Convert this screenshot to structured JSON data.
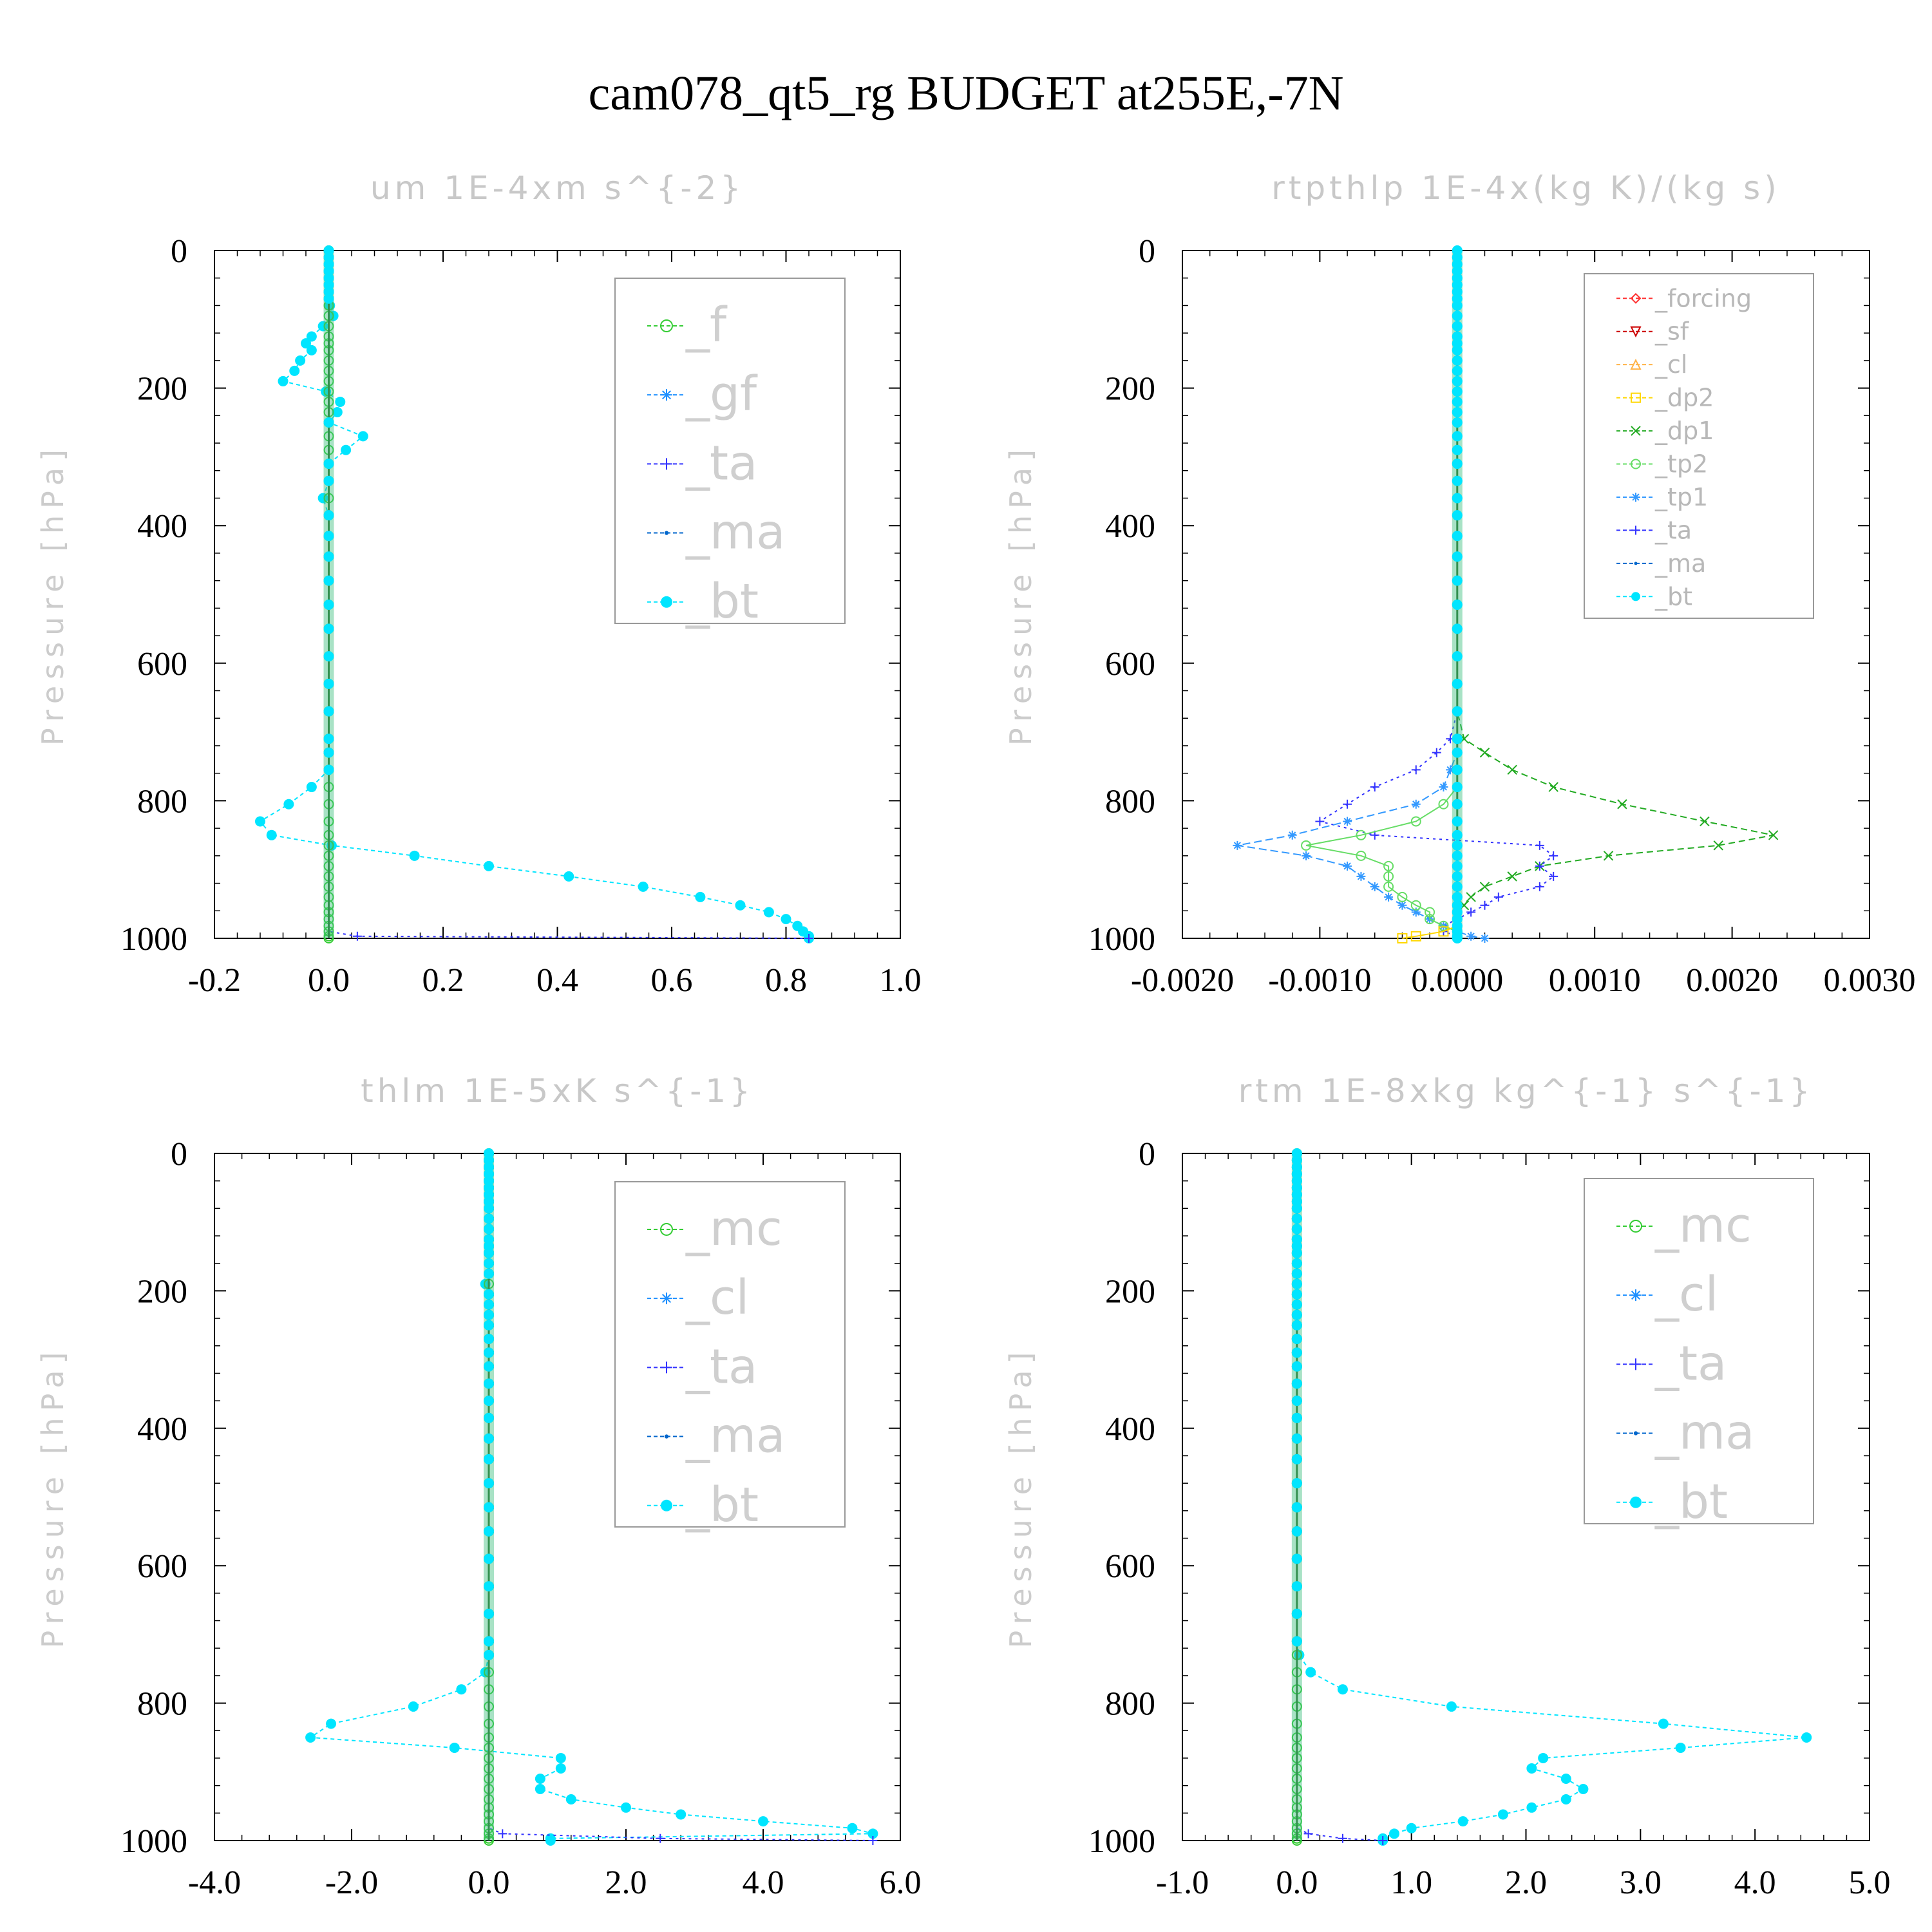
{
  "figure_title": "cam078_qt5_rg  BUDGET at255E,-7N",
  "colors": {
    "f": "#33cc33",
    "gf": "#1e90ff",
    "ta": "#3333ff",
    "ma": "#0066cc",
    "bt": "#00e5ff",
    "forcing": "#ff3333",
    "sf": "#cc0000",
    "cl": "#ffb347",
    "dp2": "#ffd700",
    "dp1": "#22aa22",
    "tp2": "#66dd66",
    "tp1": "#3399ff",
    "mc": "#33cc33",
    "cl_blue": "#1e90ff"
  },
  "chart_data": [
    {
      "type": "line",
      "title": "um  1E-4xm s^{-2}",
      "ylabel": "Pressure [hPa]",
      "xlim": [
        -0.2,
        1.0
      ],
      "ylim": [
        1000,
        0
      ],
      "xticks": [
        "-0.2",
        "0.0",
        "0.2",
        "0.4",
        "0.6",
        "0.8",
        "1.0"
      ],
      "yticks": [
        "0",
        "200",
        "400",
        "600",
        "800",
        "1000"
      ],
      "legend": [
        "_f",
        "_gf",
        "_ta",
        "_ma",
        "_bt"
      ],
      "p": [
        0,
        10,
        20,
        30,
        40,
        50,
        60,
        70,
        80,
        95,
        110,
        125,
        135,
        145,
        160,
        175,
        190,
        205,
        220,
        235,
        250,
        270,
        290,
        310,
        335,
        360,
        385,
        415,
        445,
        480,
        515,
        550,
        590,
        630,
        670,
        710,
        730,
        755,
        780,
        805,
        830,
        850,
        865,
        880,
        895,
        910,
        925,
        940,
        952,
        962,
        972,
        982,
        990,
        997,
        1000
      ],
      "series": [
        {
          "name": "_bt",
          "values": [
            0,
            0,
            0,
            0,
            0,
            0,
            0,
            0,
            0.002,
            0.008,
            -0.01,
            -0.03,
            -0.04,
            -0.03,
            -0.05,
            -0.06,
            -0.08,
            -0.005,
            0.02,
            0.015,
            0,
            0.06,
            0.03,
            0,
            0,
            -0.01,
            0,
            0,
            0,
            0,
            0,
            0,
            0,
            0,
            0,
            0,
            0,
            0,
            -0.03,
            -0.07,
            -0.12,
            -0.1,
            0.005,
            0.15,
            0.28,
            0.42,
            0.55,
            0.65,
            0.72,
            0.77,
            0.8,
            0.82,
            0.83,
            0.84,
            0.84
          ]
        },
        {
          "name": "_ta",
          "values": [
            0,
            0,
            0,
            0,
            0,
            0,
            0,
            0,
            0,
            0,
            0,
            0,
            0,
            0,
            0,
            0,
            0,
            0,
            0,
            0,
            0,
            0,
            0,
            0,
            0,
            0,
            0,
            0,
            0,
            0,
            0,
            0,
            0,
            0,
            0,
            0,
            0,
            0,
            0,
            0,
            0,
            0,
            0,
            0,
            0,
            0,
            0,
            0,
            0,
            0,
            0,
            0,
            0,
            0.05,
            0.84
          ]
        },
        {
          "name": "_f",
          "values": [
            0,
            0,
            0,
            0,
            0,
            0,
            0,
            0,
            0,
            0,
            0,
            0,
            0,
            0,
            0,
            0,
            0,
            0,
            0,
            0,
            0,
            0,
            0,
            0,
            0,
            0,
            0,
            0,
            0,
            0,
            0,
            0,
            0,
            0,
            0,
            0,
            0,
            0,
            0,
            0,
            0,
            0,
            0,
            0,
            0,
            0,
            0,
            0,
            0,
            0,
            0,
            0,
            0,
            0,
            0
          ]
        }
      ]
    },
    {
      "type": "line",
      "title": "rtpthlp  1E-4x(kg K)/(kg s)",
      "ylabel": "Pressure [hPa]",
      "xlim": [
        -0.002,
        0.003
      ],
      "ylim": [
        1000,
        0
      ],
      "xticks": [
        "-0.0020",
        "-0.0010",
        "0.0000",
        "0.0010",
        "0.0020",
        "0.0030"
      ],
      "yticks": [
        "0",
        "200",
        "400",
        "600",
        "800",
        "1000"
      ],
      "legend": [
        "_forcing",
        "_sf",
        "_cl",
        "_dp2",
        "_dp1",
        "_tp2",
        "_tp1",
        "_ta",
        "_ma",
        "_bt"
      ],
      "p": [
        0,
        10,
        20,
        30,
        40,
        50,
        60,
        70,
        80,
        95,
        110,
        125,
        135,
        145,
        160,
        175,
        190,
        205,
        220,
        235,
        250,
        270,
        290,
        310,
        335,
        360,
        385,
        415,
        445,
        480,
        515,
        550,
        590,
        630,
        670,
        710,
        730,
        755,
        780,
        805,
        830,
        850,
        865,
        880,
        895,
        910,
        925,
        940,
        952,
        962,
        972,
        982,
        990,
        997,
        1000
      ],
      "series": [
        {
          "name": "_dp1",
          "values": [
            0,
            0,
            0,
            0,
            0,
            0,
            0,
            0,
            0,
            0,
            0,
            0,
            0,
            0,
            0,
            0,
            0,
            0,
            0,
            0,
            0,
            0,
            0,
            0,
            0,
            0,
            0,
            0,
            0,
            0,
            0,
            0,
            0,
            0,
            0,
            5e-05,
            0.0002,
            0.0004,
            0.0007,
            0.0012,
            0.0018,
            0.0023,
            0.0019,
            0.0011,
            0.0006,
            0.0004,
            0.0002,
            0.0001,
            5e-05,
            0,
            0,
            0,
            0,
            0,
            0
          ]
        },
        {
          "name": "_ta",
          "values": [
            0,
            0,
            0,
            0,
            0,
            0,
            0,
            0,
            0,
            0,
            0,
            0,
            0,
            0,
            0,
            0,
            0,
            0,
            0,
            0,
            0,
            0,
            0,
            0,
            0,
            0,
            0,
            0,
            0,
            0,
            0,
            0,
            0,
            0,
            0,
            -5e-05,
            -0.00015,
            -0.0003,
            -0.0006,
            -0.0008,
            -0.001,
            -0.0006,
            0.0006,
            0.0007,
            0.0006,
            0.0007,
            0.0006,
            0.0003,
            0.0002,
            0.0001,
            0,
            -0.0001,
            -0.0001,
            0,
            0
          ]
        },
        {
          "name": "_tp1",
          "values": [
            0,
            0,
            0,
            0,
            0,
            0,
            0,
            0,
            0,
            0,
            0,
            0,
            0,
            0,
            0,
            0,
            0,
            0,
            0,
            0,
            0,
            0,
            0,
            0,
            0,
            0,
            0,
            0,
            0,
            0,
            0,
            0,
            0,
            0,
            0,
            0,
            0,
            -5e-05,
            -0.0001,
            -0.0003,
            -0.0008,
            -0.0012,
            -0.0016,
            -0.0011,
            -0.0008,
            -0.0007,
            -0.0006,
            -0.0005,
            -0.0004,
            -0.0003,
            -0.0002,
            -0.0001,
            0,
            0.0001,
            0.0002
          ]
        },
        {
          "name": "_tp2",
          "values": [
            0,
            0,
            0,
            0,
            0,
            0,
            0,
            0,
            0,
            0,
            0,
            0,
            0,
            0,
            0,
            0,
            0,
            0,
            0,
            0,
            0,
            0,
            0,
            0,
            0,
            0,
            0,
            0,
            0,
            0,
            0,
            0,
            0,
            0,
            0,
            0,
            0,
            0,
            0,
            -0.0001,
            -0.0003,
            -0.0007,
            -0.0011,
            -0.0007,
            -0.0005,
            -0.0005,
            -0.0005,
            -0.0004,
            -0.0003,
            -0.0002,
            -0.0002,
            -0.0001,
            0,
            0,
            0
          ]
        },
        {
          "name": "_dp2",
          "values": [
            0,
            0,
            0,
            0,
            0,
            0,
            0,
            0,
            0,
            0,
            0,
            0,
            0,
            0,
            0,
            0,
            0,
            0,
            0,
            0,
            0,
            0,
            0,
            0,
            0,
            0,
            0,
            0,
            0,
            0,
            0,
            0,
            0,
            0,
            0,
            0,
            0,
            0,
            0,
            0,
            0,
            0,
            0,
            0,
            0,
            0,
            0,
            0,
            0,
            0,
            0,
            0,
            -0.0001,
            -0.0003,
            -0.0004
          ]
        },
        {
          "name": "_bt",
          "values": [
            0,
            0,
            0,
            0,
            0,
            0,
            0,
            0,
            0,
            0,
            0,
            0,
            0,
            0,
            0,
            0,
            0,
            0,
            0,
            0,
            0,
            0,
            0,
            0,
            0,
            0,
            0,
            0,
            0,
            0,
            0,
            0,
            0,
            0,
            0,
            0,
            0,
            0,
            0,
            0,
            0,
            0,
            0,
            0,
            0,
            0,
            0,
            0,
            0,
            0,
            0,
            0,
            0,
            0,
            0
          ]
        }
      ]
    },
    {
      "type": "line",
      "title": "thlm  1E-5xK s^{-1}",
      "ylabel": "Pressure [hPa]",
      "xlim": [
        -4.0,
        6.0
      ],
      "ylim": [
        1000,
        0
      ],
      "xticks": [
        "-4.0",
        "-2.0",
        "0.0",
        "2.0",
        "4.0",
        "6.0"
      ],
      "yticks": [
        "0",
        "200",
        "400",
        "600",
        "800",
        "1000"
      ],
      "legend": [
        "_mc",
        "_cl",
        "_ta",
        "_ma",
        "_bt"
      ],
      "p": [
        0,
        10,
        20,
        30,
        40,
        50,
        60,
        70,
        80,
        95,
        110,
        125,
        135,
        145,
        160,
        175,
        190,
        205,
        220,
        235,
        250,
        270,
        290,
        310,
        335,
        360,
        385,
        415,
        445,
        480,
        515,
        550,
        590,
        630,
        670,
        710,
        730,
        755,
        780,
        805,
        830,
        850,
        865,
        880,
        895,
        910,
        925,
        940,
        952,
        962,
        972,
        982,
        990,
        997,
        1000
      ],
      "series": [
        {
          "name": "_bt",
          "values": [
            0,
            0,
            0,
            0,
            0,
            0,
            0,
            0,
            0,
            0,
            0,
            0,
            0,
            0,
            0,
            0,
            -0.05,
            0,
            0,
            0,
            0,
            0,
            0,
            0,
            0,
            0,
            0,
            0,
            0,
            0,
            0,
            0,
            0,
            0,
            0,
            0,
            0,
            -0.05,
            -0.4,
            -1.1,
            -2.3,
            -2.6,
            -0.5,
            1.05,
            1.05,
            0.75,
            0.75,
            1.2,
            2.0,
            2.8,
            4.0,
            5.3,
            5.6,
            0.9,
            0.9
          ]
        },
        {
          "name": "_ta",
          "values": [
            0,
            0,
            0,
            0,
            0,
            0,
            0,
            0,
            0,
            0,
            0,
            0,
            0,
            0,
            0,
            0,
            0,
            0,
            0,
            0,
            0,
            0,
            0,
            0,
            0,
            0,
            0,
            0,
            0,
            0,
            0,
            0,
            0,
            0,
            0,
            0,
            0,
            0,
            0,
            0,
            0,
            0,
            0,
            0,
            0,
            0,
            0,
            0,
            0,
            0,
            0,
            0,
            0.2,
            2.5,
            5.6
          ]
        },
        {
          "name": "_mc",
          "values": [
            0,
            0,
            0,
            0,
            0,
            0,
            0,
            0,
            0,
            0,
            0,
            0,
            0,
            0,
            0,
            0,
            0,
            0,
            0,
            0,
            0,
            0,
            0,
            0,
            0,
            0,
            0,
            0,
            0,
            0,
            0,
            0,
            0,
            0,
            0,
            0,
            0,
            0,
            0,
            0,
            0,
            0,
            0,
            0,
            0,
            0,
            0,
            0,
            0,
            0,
            0,
            0,
            0,
            0,
            0
          ]
        }
      ]
    },
    {
      "type": "line",
      "title": "rtm  1E-8xkg kg^{-1} s^{-1}",
      "ylabel": "Pressure [hPa]",
      "xlim": [
        -1.0,
        5.0
      ],
      "ylim": [
        1000,
        0
      ],
      "xticks": [
        "-1.0",
        "0.0",
        "1.0",
        "2.0",
        "3.0",
        "4.0",
        "5.0"
      ],
      "yticks": [
        "0",
        "200",
        "400",
        "600",
        "800",
        "1000"
      ],
      "legend": [
        "_mc",
        "_cl",
        "_ta",
        "_ma",
        "_bt"
      ],
      "p": [
        0,
        10,
        20,
        30,
        40,
        50,
        60,
        70,
        80,
        95,
        110,
        125,
        135,
        145,
        160,
        175,
        190,
        205,
        220,
        235,
        250,
        270,
        290,
        310,
        335,
        360,
        385,
        415,
        445,
        480,
        515,
        550,
        590,
        630,
        670,
        710,
        730,
        755,
        780,
        805,
        830,
        850,
        865,
        880,
        895,
        910,
        925,
        940,
        952,
        962,
        972,
        982,
        990,
        997,
        1000
      ],
      "series": [
        {
          "name": "_bt",
          "values": [
            0,
            0,
            0,
            0,
            0,
            0,
            0,
            0,
            0,
            0,
            0,
            0,
            0,
            0,
            0,
            0,
            0,
            0,
            0,
            0,
            0,
            0,
            0,
            0,
            0,
            0,
            0,
            0,
            0,
            0,
            0,
            0,
            0,
            0,
            0,
            0,
            0.02,
            0.12,
            0.4,
            1.35,
            3.2,
            4.45,
            3.35,
            2.15,
            2.05,
            2.35,
            2.5,
            2.35,
            2.05,
            1.8,
            1.45,
            1.0,
            0.85,
            0.75,
            0.75
          ]
        },
        {
          "name": "_ta",
          "values": [
            0,
            0,
            0,
            0,
            0,
            0,
            0,
            0,
            0,
            0,
            0,
            0,
            0,
            0,
            0,
            0,
            0,
            0,
            0,
            0,
            0,
            0,
            0,
            0,
            0,
            0,
            0,
            0,
            0,
            0,
            0,
            0,
            0,
            0,
            0,
            0,
            0,
            0,
            0,
            0,
            0,
            0,
            0,
            0,
            0,
            0,
            0,
            0,
            0,
            0,
            0,
            0,
            0.1,
            0.4,
            0.75
          ]
        },
        {
          "name": "_mc",
          "values": [
            0,
            0,
            0,
            0,
            0,
            0,
            0,
            0,
            0,
            0,
            0,
            0,
            0,
            0,
            0,
            0,
            0,
            0,
            0,
            0,
            0,
            0,
            0,
            0,
            0,
            0,
            0,
            0,
            0,
            0,
            0,
            0,
            0,
            0,
            0,
            0,
            0,
            0,
            0,
            0,
            0,
            0,
            0,
            0,
            0,
            0,
            0,
            0,
            0,
            0,
            0,
            0,
            0,
            0,
            0
          ]
        }
      ]
    }
  ]
}
